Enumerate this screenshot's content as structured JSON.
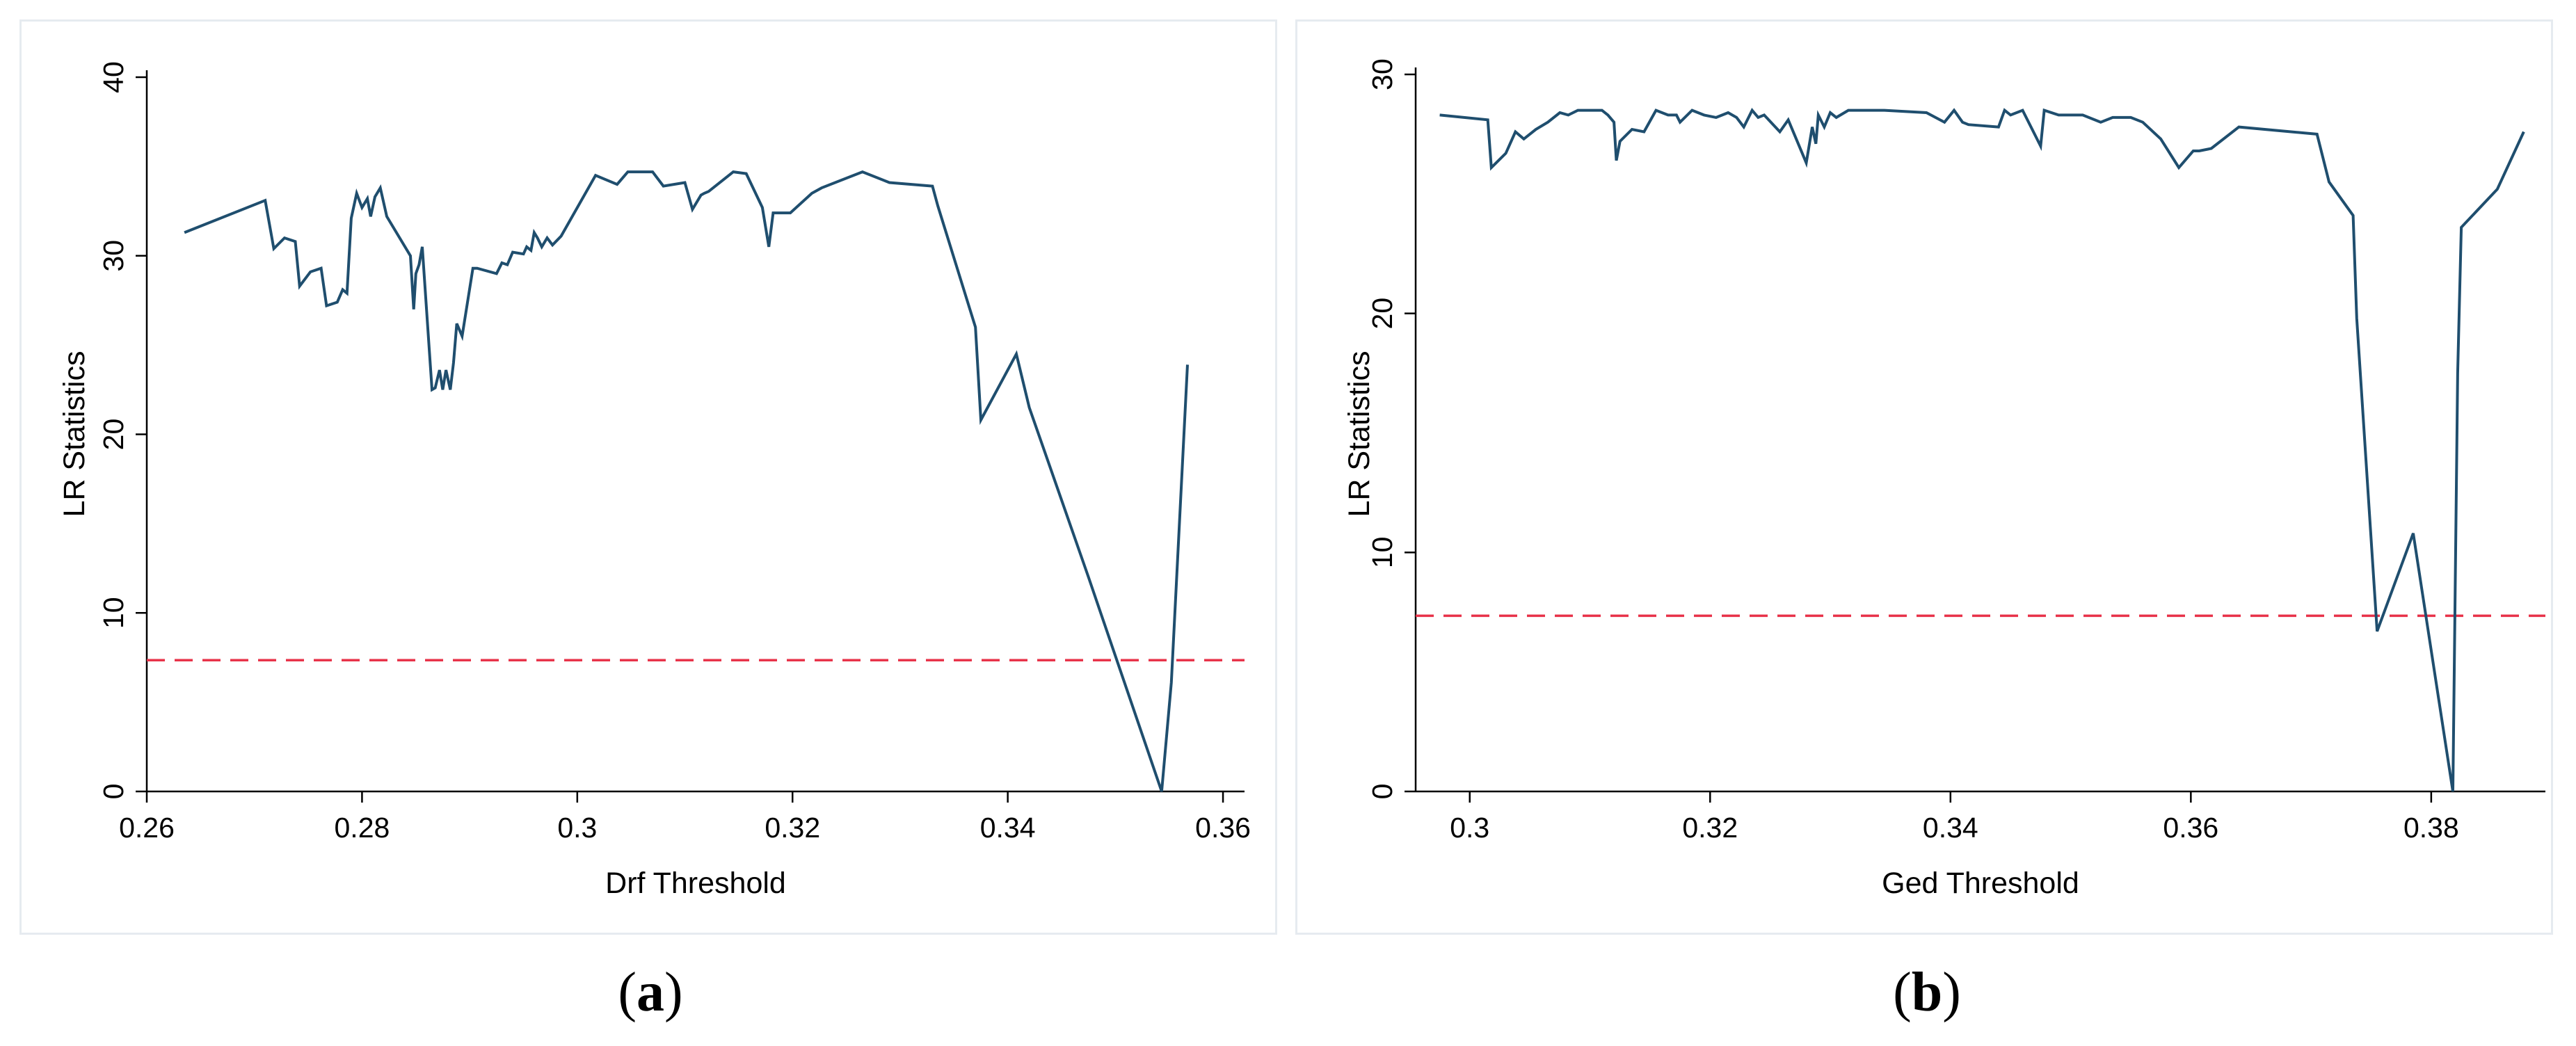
{
  "chart_data": [
    {
      "type": "line",
      "panel_label": "(a)",
      "xlabel": "Drf Threshold",
      "ylabel": "LR Statistics",
      "xlim": [
        0.26,
        0.362
      ],
      "ylim": [
        0,
        40
      ],
      "xticks": [
        0.26,
        0.28,
        0.3,
        0.32,
        0.34,
        0.36
      ],
      "xtick_labels": [
        "0.26",
        "0.28",
        "0.3",
        "0.32",
        "0.34",
        "0.36"
      ],
      "yticks": [
        0,
        10,
        20,
        30,
        40
      ],
      "ytick_labels": [
        "0",
        "10",
        "20",
        "30",
        "40"
      ],
      "grid": false,
      "line_color": "#1f4e6e",
      "critical_value_color": "#e8334a",
      "critical_value": 7.35,
      "x": [
        0.2635,
        0.271,
        0.2718,
        0.2728,
        0.2738,
        0.2742,
        0.2752,
        0.2762,
        0.2767,
        0.2777,
        0.2782,
        0.2786,
        0.279,
        0.2795,
        0.28,
        0.2805,
        0.2808,
        0.2812,
        0.2817,
        0.2823,
        0.2845,
        0.2848,
        0.285,
        0.2853,
        0.2856,
        0.2865,
        0.2868,
        0.2872,
        0.2875,
        0.2878,
        0.2882,
        0.2885,
        0.2888,
        0.2893,
        0.2903,
        0.2907,
        0.2925,
        0.293,
        0.2935,
        0.294,
        0.295,
        0.2953,
        0.2957,
        0.296,
        0.2963,
        0.2967,
        0.2972,
        0.2977,
        0.2985,
        0.3017,
        0.3037,
        0.3047,
        0.3057,
        0.3063,
        0.307,
        0.308,
        0.31,
        0.3107,
        0.3115,
        0.3118,
        0.3122,
        0.3145,
        0.3157,
        0.3172,
        0.3178,
        0.3182,
        0.3185,
        0.3198,
        0.3218,
        0.3227,
        0.3265,
        0.329,
        0.333,
        0.3335,
        0.337,
        0.3375,
        0.3408,
        0.342,
        0.3475,
        0.3543,
        0.3552,
        0.3567
      ],
      "y": [
        31.3,
        33.1,
        30.4,
        31.0,
        30.8,
        28.3,
        29.1,
        29.3,
        27.2,
        27.4,
        28.1,
        27.9,
        32.1,
        33.5,
        32.7,
        33.2,
        32.2,
        33.3,
        33.8,
        32.2,
        30.0,
        27.0,
        29.0,
        29.5,
        30.5,
        22.5,
        22.6,
        23.6,
        22.5,
        23.6,
        22.5,
        24.0,
        26.2,
        25.5,
        29.3,
        29.3,
        29.0,
        29.6,
        29.5,
        30.2,
        30.1,
        30.5,
        30.3,
        31.3,
        31.0,
        30.5,
        31.0,
        30.6,
        31.1,
        34.5,
        34.0,
        34.7,
        34.7,
        34.7,
        34.7,
        33.9,
        34.1,
        32.6,
        33.4,
        33.5,
        33.6,
        34.7,
        34.6,
        32.7,
        30.5,
        32.4,
        32.4,
        32.4,
        33.5,
        33.8,
        34.7,
        34.1,
        33.9,
        32.8,
        26.0,
        20.8,
        24.5,
        21.5,
        12.0,
        0.0,
        6.1,
        23.9
      ]
    },
    {
      "type": "line",
      "panel_label": "(b)",
      "xlabel": "Ged Threshold",
      "ylabel": "LR Statistics",
      "xlim": [
        0.2955,
        0.3895
      ],
      "ylim": [
        0,
        30
      ],
      "xticks": [
        0.3,
        0.32,
        0.34,
        0.36,
        0.38
      ],
      "xtick_labels": [
        "0.3",
        "0.32",
        "0.34",
        "0.36",
        "0.38"
      ],
      "yticks": [
        0,
        10,
        20,
        30
      ],
      "ytick_labels": [
        "0",
        "10",
        "20",
        "30"
      ],
      "grid": false,
      "line_color": "#1f4e6e",
      "critical_value_color": "#e8334a",
      "critical_value": 7.35,
      "x": [
        0.2975,
        0.3015,
        0.3018,
        0.303,
        0.3038,
        0.3045,
        0.3055,
        0.3065,
        0.3075,
        0.3082,
        0.309,
        0.31,
        0.311,
        0.3115,
        0.312,
        0.3122,
        0.3125,
        0.3135,
        0.3145,
        0.3155,
        0.3165,
        0.3172,
        0.3175,
        0.3185,
        0.3195,
        0.3205,
        0.3215,
        0.3222,
        0.3228,
        0.3235,
        0.324,
        0.3245,
        0.3258,
        0.3265,
        0.328,
        0.3285,
        0.3288,
        0.329,
        0.3295,
        0.33,
        0.3305,
        0.3315,
        0.3345,
        0.338,
        0.3395,
        0.3403,
        0.341,
        0.3415,
        0.344,
        0.3445,
        0.345,
        0.346,
        0.3475,
        0.3478,
        0.349,
        0.351,
        0.3525,
        0.3535,
        0.355,
        0.356,
        0.3575,
        0.359,
        0.3602,
        0.3607,
        0.3617,
        0.364,
        0.3705,
        0.3715,
        0.3735,
        0.3738,
        0.3755,
        0.3785,
        0.3818,
        0.3822,
        0.3825,
        0.3855,
        0.3877
      ],
      "y": [
        28.3,
        28.1,
        26.1,
        26.7,
        27.6,
        27.3,
        27.7,
        28.0,
        28.4,
        28.3,
        28.5,
        28.5,
        28.5,
        28.3,
        28.0,
        26.4,
        27.2,
        27.7,
        27.6,
        28.5,
        28.3,
        28.3,
        28.0,
        28.5,
        28.3,
        28.2,
        28.4,
        28.2,
        27.8,
        28.5,
        28.2,
        28.3,
        27.6,
        28.1,
        26.3,
        27.8,
        27.1,
        28.3,
        27.8,
        28.4,
        28.2,
        28.5,
        28.5,
        28.4,
        28.0,
        28.5,
        28.0,
        27.9,
        27.8,
        28.5,
        28.3,
        28.5,
        27.0,
        28.5,
        28.3,
        28.3,
        28.0,
        28.2,
        28.2,
        28.0,
        27.3,
        26.1,
        26.8,
        26.8,
        26.9,
        27.8,
        27.5,
        25.5,
        24.1,
        19.8,
        6.7,
        10.8,
        0.0,
        17.5,
        23.6,
        25.2,
        27.6
      ]
    }
  ]
}
